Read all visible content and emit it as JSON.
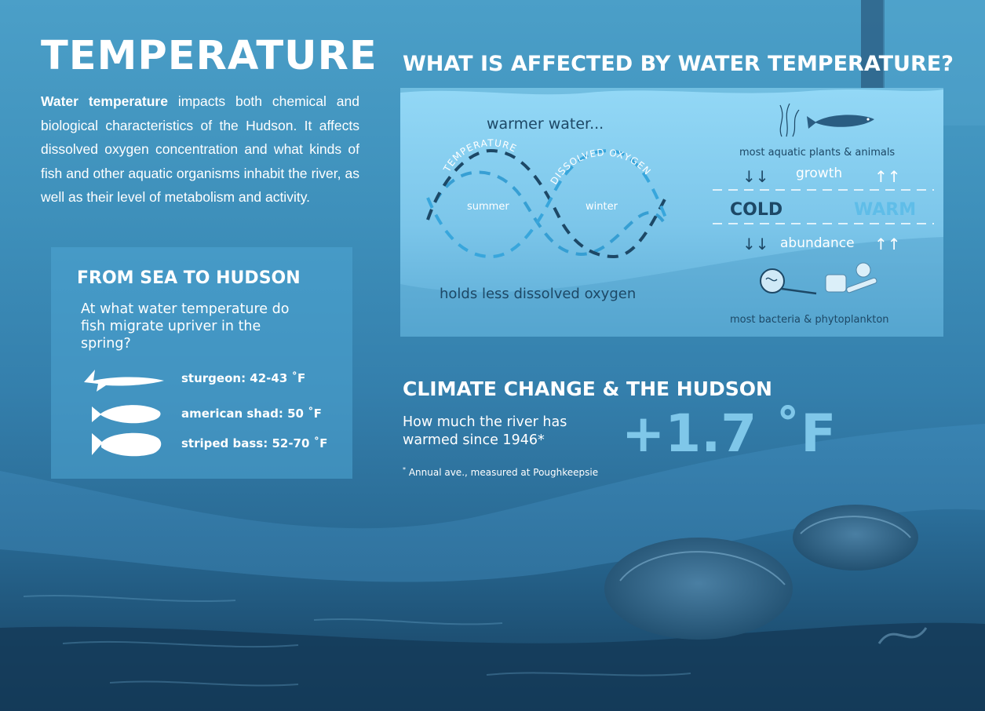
{
  "page": {
    "title": "TEMPERATURE",
    "intro_bold": "Water temperature",
    "intro_rest": "impacts both chemical and biological characteristics of the Hudson. It affects dissolved oxygen concentration and what kinds of fish and other aquatic organisms inhabit the river, as well as their level of metabolism and activity."
  },
  "migration": {
    "title": "FROM SEA TO HUDSON",
    "question": "At what water temperature do fish migrate upriver in the spring?",
    "fish": [
      {
        "icon": "sturgeon-icon",
        "label": "sturgeon: 42-43 ˚F"
      },
      {
        "icon": "shad-icon",
        "label": "american shad: 50 ˚F"
      },
      {
        "icon": "striped-bass-icon",
        "label": "striped bass: 52-70 ˚F"
      }
    ]
  },
  "effects": {
    "title": "WHAT IS AFFECTED BY WATER TEMPERATURE?",
    "warmer": "warmer water...",
    "curve_temp": "TEMPERATURE",
    "curve_oxygen": "DISSOLVED OXYGEN",
    "summer": "summer",
    "winter": "winter",
    "holds_less": "holds less dissolved oxygen",
    "plants_animals": "most aquatic plants & animals",
    "growth": "growth",
    "cold": "COLD",
    "warm": "WARM",
    "abundance": "abundance",
    "bacteria": "most bacteria & phytoplankton",
    "arrow_down": "↓↓",
    "arrow_up": "↑↑"
  },
  "climate": {
    "title": "CLIMATE CHANGE & THE HUDSON",
    "question": "How much the river has warmed since 1946*",
    "value": "+1.7 ˚F",
    "note_mark": "*",
    "note": "Annual ave., measured at Poughkeepsie"
  },
  "colors": {
    "panel_light": "#8fd5f5",
    "panel_dark": "#4fa3cc",
    "text_dark": "#1d4866",
    "cold": "#1d4866",
    "warm": "#5fbde8",
    "accent_value": "#7fc7e9"
  }
}
